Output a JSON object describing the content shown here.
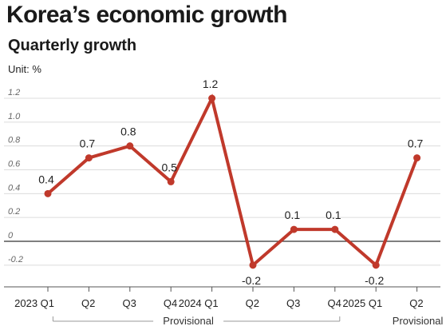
{
  "header": {
    "title": "Korea’s economic growth",
    "subtitle": "Quarterly growth",
    "unit": "Unit: %"
  },
  "chart_data": {
    "type": "line",
    "title": "Korea’s economic growth",
    "subtitle": "Quarterly growth",
    "ylabel": "Unit: %",
    "categories": [
      "2023 Q1",
      "Q2",
      "Q3",
      "Q4",
      "2024 Q1",
      "Q2",
      "Q3",
      "Q4",
      "2025 Q1",
      "Q2"
    ],
    "values": [
      0.4,
      0.7,
      0.8,
      0.5,
      1.2,
      -0.2,
      0.1,
      0.1,
      -0.2,
      0.7
    ],
    "data_labels": [
      "0.4",
      "0.7",
      "0.8",
      "0.5",
      "1.2",
      "-0.2",
      "0.1",
      "0.1",
      "-0.2",
      "0.7"
    ],
    "yticks": [
      1.2,
      1.0,
      0.8,
      0.6,
      0.4,
      0.2,
      0,
      -0.2
    ],
    "ytick_labels": [
      "1.2",
      "1.0",
      "0.8",
      "0.6",
      "0.4",
      "0.2",
      "0",
      "-0.2"
    ],
    "ylim": [
      -0.35,
      1.35
    ],
    "grid": true,
    "line_color": "#c0392b",
    "annotations": [
      {
        "text": "Provisional",
        "span": [
          "Q2",
          "Q4"
        ]
      },
      {
        "text": "Provisional",
        "under": "Q2"
      }
    ]
  }
}
